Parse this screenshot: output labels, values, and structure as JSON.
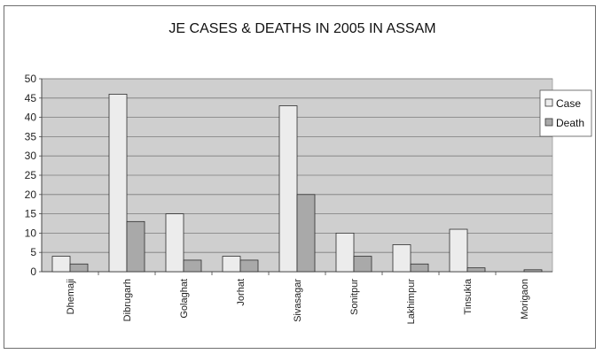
{
  "chart_data": {
    "type": "bar",
    "title": "JE CASES & DEATHS IN 2005 IN ASSAM",
    "categories": [
      "Dhemaji",
      "Dibrugarh",
      "Golaghat",
      "Jorhat",
      "Sivasagar",
      "Sonitpur",
      "Lakhimpur",
      "Tinsukia",
      "Morigaon"
    ],
    "series": [
      {
        "name": "Case",
        "values": [
          4,
          46,
          15,
          4,
          43,
          10,
          7,
          11,
          0
        ],
        "color": "#ececec"
      },
      {
        "name": "Death",
        "values": [
          2,
          13,
          3,
          3,
          20,
          4,
          2,
          1,
          0.5
        ],
        "color": "#a9a9a9"
      }
    ],
    "ylim": [
      0,
      50
    ],
    "yticks": [
      "0",
      "5",
      "10",
      "15",
      "20",
      "25",
      "30",
      "35",
      "40",
      "45",
      "50"
    ],
    "grid": true,
    "legend_position": "top-right",
    "plot_background": "#cfcfcf",
    "xlabel": "",
    "ylabel": ""
  }
}
